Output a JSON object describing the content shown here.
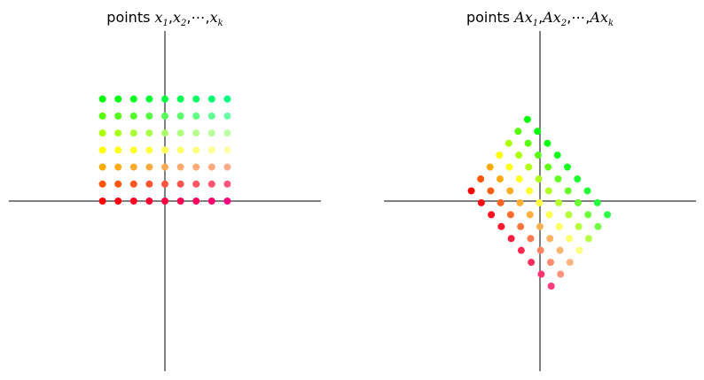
{
  "chart_data": [
    {
      "type": "scatter",
      "title_prefix": "points",
      "title_terms": [
        "x",
        "1",
        "x",
        "2",
        "x",
        "k"
      ],
      "title_sep": ",",
      "title_dots": "⋯",
      "xlim": [
        -5,
        5
      ],
      "ylim": [
        -5,
        5
      ],
      "grid": false,
      "points": [
        [
          -2,
          3,
          "#00ff00"
        ],
        [
          -1.5,
          3,
          "#00ff10"
        ],
        [
          -1,
          3,
          "#00ff20"
        ],
        [
          -0.5,
          3,
          "#00ff30"
        ],
        [
          0,
          3,
          "#00ff40"
        ],
        [
          0.5,
          3,
          "#00ff50"
        ],
        [
          1,
          3,
          "#00ff60"
        ],
        [
          1.5,
          3,
          "#00ff70"
        ],
        [
          2,
          3,
          "#00ff80"
        ],
        [
          -2,
          2.5,
          "#55ff00"
        ],
        [
          -1.5,
          2.5,
          "#55ff15"
        ],
        [
          -1,
          2.5,
          "#55ff2a"
        ],
        [
          -0.5,
          2.5,
          "#55ff3f"
        ],
        [
          0,
          2.5,
          "#55ff55"
        ],
        [
          0.5,
          2.5,
          "#5aff6a"
        ],
        [
          1,
          2.5,
          "#5fff7f"
        ],
        [
          1.5,
          2.5,
          "#64ff94"
        ],
        [
          2,
          2.5,
          "#69ffaa"
        ],
        [
          -2,
          2,
          "#aaff00"
        ],
        [
          -1.5,
          2,
          "#aaff1a"
        ],
        [
          -1,
          2,
          "#aaff33"
        ],
        [
          -0.5,
          2,
          "#aaff4d"
        ],
        [
          0,
          2,
          "#aaff66"
        ],
        [
          0.5,
          2,
          "#b2ff80"
        ],
        [
          1,
          2,
          "#b5ff8c"
        ],
        [
          1.5,
          2,
          "#b8ff99"
        ],
        [
          2,
          2,
          "#bbffa6"
        ],
        [
          -2,
          1.5,
          "#ffff00"
        ],
        [
          -1.5,
          1.5,
          "#ffff15"
        ],
        [
          -1,
          1.5,
          "#ffff2a"
        ],
        [
          -0.5,
          1.5,
          "#ffff40"
        ],
        [
          0,
          1.5,
          "#ffff55"
        ],
        [
          0.5,
          1.5,
          "#ffff6a"
        ],
        [
          1,
          1.5,
          "#ffff80"
        ],
        [
          1.5,
          1.5,
          "#ffff95"
        ],
        [
          2,
          1.5,
          "#ffffaa"
        ],
        [
          -2,
          1,
          "#ffaa00"
        ],
        [
          -1.5,
          1,
          "#ffaa15"
        ],
        [
          -1,
          1,
          "#ffaa2a"
        ],
        [
          -0.5,
          1,
          "#ffaa40"
        ],
        [
          0,
          1,
          "#ffaa55"
        ],
        [
          0.5,
          1,
          "#ffaa6a"
        ],
        [
          1,
          1,
          "#ffaa75"
        ],
        [
          1.5,
          1,
          "#ffaa80"
        ],
        [
          2,
          1,
          "#ffaa8a"
        ],
        [
          -2,
          0.5,
          "#ff5500"
        ],
        [
          -1.5,
          0.5,
          "#ff5510"
        ],
        [
          -1,
          0.5,
          "#ff5520"
        ],
        [
          -0.5,
          0.5,
          "#ff5530"
        ],
        [
          0,
          0.5,
          "#ff5540"
        ],
        [
          0.5,
          0.5,
          "#ff5550"
        ],
        [
          1,
          0.5,
          "#ff5560"
        ],
        [
          1.5,
          0.5,
          "#ff5570"
        ],
        [
          2,
          0.5,
          "#ff5580"
        ],
        [
          -2,
          0,
          "#ff0000"
        ],
        [
          -1.5,
          0,
          "#ff0010"
        ],
        [
          -1,
          0,
          "#ff0020"
        ],
        [
          -0.5,
          0,
          "#ff0030"
        ],
        [
          0,
          0,
          "#ff0040"
        ],
        [
          0.5,
          0,
          "#ff0050"
        ],
        [
          1,
          0,
          "#ff0060"
        ],
        [
          1.5,
          0,
          "#ff0070"
        ],
        [
          2,
          0,
          "#ff0080"
        ]
      ]
    },
    {
      "type": "scatter",
      "title_prefix": "points",
      "title_terms": [
        "Ax",
        "1",
        "Ax",
        "2",
        "Ax",
        "k"
      ],
      "title_sep": ",",
      "title_dots": "⋯",
      "xlim": [
        -5,
        5
      ],
      "ylim": [
        -5,
        5
      ],
      "grid": false,
      "points": [
        [
          -2.2,
          0.3,
          "#ff0000"
        ],
        [
          -1.2,
          0.6,
          "#ff0000"
        ],
        [
          -0.2,
          0.9,
          "#ff0000"
        ],
        [
          0.8,
          1.2,
          "#ff0000"
        ],
        [
          -1.9,
          0.65,
          "#ff5500"
        ],
        [
          -0.9,
          0.95,
          "#ff5500"
        ],
        [
          0.1,
          1.25,
          "#ff5500"
        ],
        [
          1.1,
          1.55,
          "#ff5500"
        ]
      ],
      "rows": [
        {
          "color": "#ff0000",
          "start": [
            -2.2,
            0.3
          ]
        },
        {
          "color": "#ff5500",
          "start": [
            -1.9,
            0.65
          ]
        },
        {
          "color": "#ffaa00",
          "start": [
            -1.6,
            1.0
          ]
        },
        {
          "color": "#ffff00",
          "start": [
            -1.3,
            1.35
          ]
        },
        {
          "color": "#aaff00",
          "start": [
            -1.0,
            1.7
          ]
        },
        {
          "color": "#55ff00",
          "start": [
            -0.7,
            2.05
          ]
        },
        {
          "color": "#00ff00",
          "start": [
            -0.4,
            2.4
          ]
        }
      ],
      "row_step": [
        0.3,
        -0.35
      ],
      "row_tints": [
        "#ff0000",
        "#ff5500",
        "#ffaa00",
        "#ffff00",
        "#aaff00",
        "#55ff00",
        "#00ff00"
      ]
    }
  ]
}
